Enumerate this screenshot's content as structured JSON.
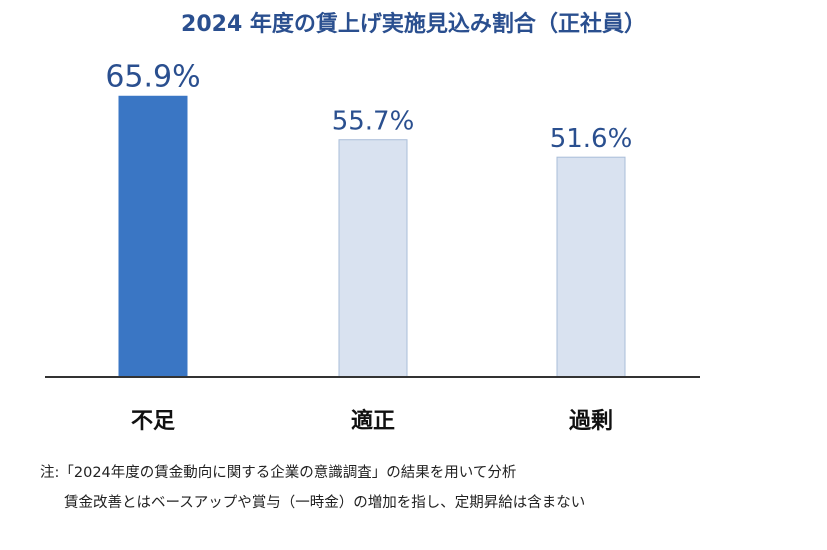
{
  "chart_data": {
    "type": "bar",
    "title": "2024 年度の賃上げ実施見込み割合（正社員）",
    "categories": [
      "不足",
      "適正",
      "過剰"
    ],
    "values": [
      65.9,
      55.7,
      51.6
    ],
    "value_labels": [
      "65.9%",
      "55.7%",
      "51.6%"
    ],
    "unit": "%",
    "colors": {
      "highlight_fill": "#3a76c4",
      "default_fill": "#d9e2f0",
      "default_stroke": "#a9bdd9",
      "value_label": "#2a4f8f",
      "axis": "#333333",
      "category_label": "#111111"
    },
    "grid": false,
    "legend": "none"
  },
  "notes": [
    "注:「2024年度の賃金動向に関する企業の意識調査」の結果を用いて分析",
    "賃金改善とはベースアップや賞与（一時金）の増加を指し、定期昇給は含まない"
  ]
}
